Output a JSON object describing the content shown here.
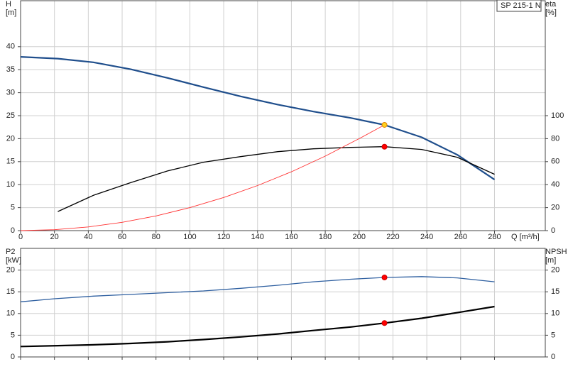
{
  "chart_data": [
    {
      "type": "line",
      "title": "SP 215-1 N",
      "ylabel": "H",
      "yunit": "[m]",
      "y2label": "eta",
      "y2unit": "[%]",
      "xlabel": "Q [m³/h]",
      "xlim": [
        0,
        310
      ],
      "xticks": [
        0,
        20,
        40,
        60,
        80,
        100,
        120,
        140,
        160,
        180,
        200,
        220,
        240,
        260,
        280
      ],
      "ylim": [
        0,
        50
      ],
      "yticks": [
        0,
        5,
        10,
        15,
        20,
        25,
        30,
        35,
        40
      ],
      "y2lim": [
        0,
        200
      ],
      "y2ticks": [
        0,
        20,
        40,
        60,
        80,
        100
      ],
      "grid": true,
      "show_xtick_labels": true,
      "series": [
        {
          "color": "#1f4e8c",
          "line_width": 2.2,
          "axis": "y",
          "x": [
            0,
            22,
            43,
            65,
            87,
            108,
            130,
            152,
            173,
            195,
            215,
            237,
            258,
            280
          ],
          "values": [
            37.8,
            37.4,
            36.6,
            35.1,
            33.2,
            31.2,
            29.2,
            27.4,
            25.9,
            24.5,
            23,
            20.3,
            16.5,
            11.1
          ]
        },
        {
          "color": "#000000",
          "line_width": 1.3,
          "axis": "y2",
          "x": [
            22,
            43,
            65,
            87,
            108,
            130,
            152,
            173,
            195,
            215,
            237,
            258,
            280
          ],
          "values": [
            16.6,
            30.7,
            41.7,
            52,
            59.5,
            64.4,
            68.7,
            71.2,
            72.4,
            73,
            70.6,
            63.8,
            49
          ]
        },
        {
          "color": "#ff3030",
          "line_width": 0.9,
          "axis": "y",
          "x": [
            0,
            20,
            40,
            60,
            80,
            100,
            120,
            140,
            160,
            180,
            200,
            215
          ],
          "values": [
            0,
            0.2,
            0.8,
            1.8,
            3.2,
            5,
            7.2,
            9.8,
            12.8,
            16.2,
            20,
            23
          ]
        }
      ],
      "points": [
        {
          "x": 215,
          "value": 23,
          "axis": "y",
          "color": "#ffd21f",
          "stroke": "#e08000"
        },
        {
          "x": 215,
          "value": 73,
          "axis": "y2",
          "color": "#ff0000",
          "stroke": "#cc0000"
        }
      ]
    },
    {
      "type": "line",
      "ylabel": "P2",
      "yunit": "[kW]",
      "y2label": "NPSH",
      "y2unit": "[m]",
      "xlim": [
        0,
        310
      ],
      "xticks": [
        0,
        20,
        40,
        60,
        80,
        100,
        120,
        140,
        160,
        180,
        200,
        220,
        240,
        260,
        280
      ],
      "ylim": [
        0,
        25
      ],
      "yticks": [
        0,
        5,
        10,
        15,
        20
      ],
      "y2lim": [
        0,
        25
      ],
      "y2ticks": [
        0,
        5,
        10,
        15,
        20
      ],
      "grid": true,
      "show_xtick_labels": false,
      "series": [
        {
          "color": "#2e5fa0",
          "line_width": 1.3,
          "axis": "y",
          "x": [
            0,
            20,
            43,
            65,
            87,
            108,
            130,
            152,
            173,
            195,
            215,
            237,
            258,
            280
          ],
          "values": [
            12.7,
            13.4,
            14.0,
            14.4,
            14.8,
            15.2,
            15.8,
            16.5,
            17.3,
            17.9,
            18.3,
            18.5,
            18.2,
            17.3
          ]
        },
        {
          "color": "#000000",
          "line_width": 2.2,
          "axis": "y2",
          "x": [
            0,
            22,
            43,
            65,
            87,
            108,
            130,
            152,
            173,
            195,
            215,
            237,
            258,
            280
          ],
          "values": [
            2.4,
            2.6,
            2.8,
            3.1,
            3.5,
            4,
            4.6,
            5.3,
            6.1,
            6.9,
            7.8,
            8.9,
            10.2,
            11.6
          ]
        }
      ],
      "points": [
        {
          "x": 215,
          "value": 18.3,
          "axis": "y",
          "color": "#ff0000",
          "stroke": "#cc0000"
        },
        {
          "x": 215,
          "value": 7.8,
          "axis": "y2",
          "color": "#ff0000",
          "stroke": "#cc0000"
        }
      ]
    }
  ]
}
